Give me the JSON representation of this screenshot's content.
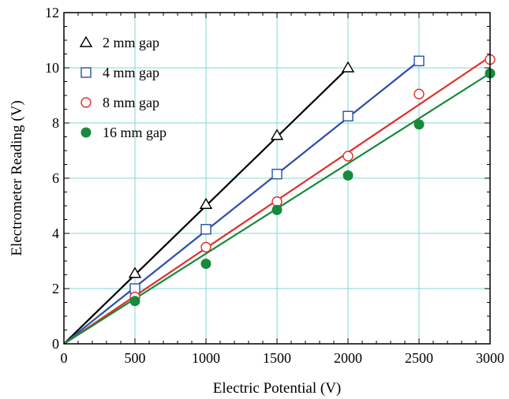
{
  "chart_data": {
    "type": "scatter",
    "title": "",
    "xlabel": "Electric Potential  (V)",
    "ylabel": "Electrometer Reading (V)",
    "xlim": [
      0,
      3000
    ],
    "ylim": [
      0,
      12
    ],
    "xticks": [
      0,
      500,
      1000,
      1500,
      2000,
      2500,
      3000
    ],
    "yticks": [
      0,
      2,
      4,
      6,
      8,
      10,
      12
    ],
    "grid": true,
    "legend_position": "top-left",
    "series": [
      {
        "name": "2 mm gap",
        "marker": "triangle-open",
        "color": "#000000",
        "x": [
          500,
          1000,
          1500,
          2000
        ],
        "y": [
          2.55,
          5.05,
          7.55,
          10.0
        ],
        "fit_line": {
          "x": [
            0,
            2000
          ],
          "y": [
            0,
            10.0
          ]
        }
      },
      {
        "name": "4 mm gap",
        "marker": "square-open",
        "color": "#2b4fa8",
        "x": [
          500,
          1000,
          1500,
          2000,
          2500
        ],
        "y": [
          2.0,
          4.15,
          6.15,
          8.25,
          10.25
        ],
        "fit_line": {
          "x": [
            0,
            2500
          ],
          "y": [
            0,
            10.25
          ]
        }
      },
      {
        "name": "8 mm gap",
        "marker": "circle-open",
        "color": "#e0302a",
        "x": [
          500,
          1000,
          1500,
          2000,
          2500,
          3000
        ],
        "y": [
          1.7,
          3.5,
          5.15,
          6.8,
          9.05,
          10.3
        ],
        "fit_line": {
          "x": [
            0,
            3000
          ],
          "y": [
            0,
            10.4
          ]
        }
      },
      {
        "name": "16 mm gap",
        "marker": "circle-filled",
        "color": "#178a3c",
        "x": [
          500,
          1000,
          1500,
          2000,
          2500,
          3000
        ],
        "y": [
          1.55,
          2.9,
          4.85,
          6.1,
          7.95,
          9.8
        ],
        "fit_line": {
          "x": [
            0,
            3000
          ],
          "y": [
            0,
            9.8
          ]
        }
      }
    ]
  }
}
